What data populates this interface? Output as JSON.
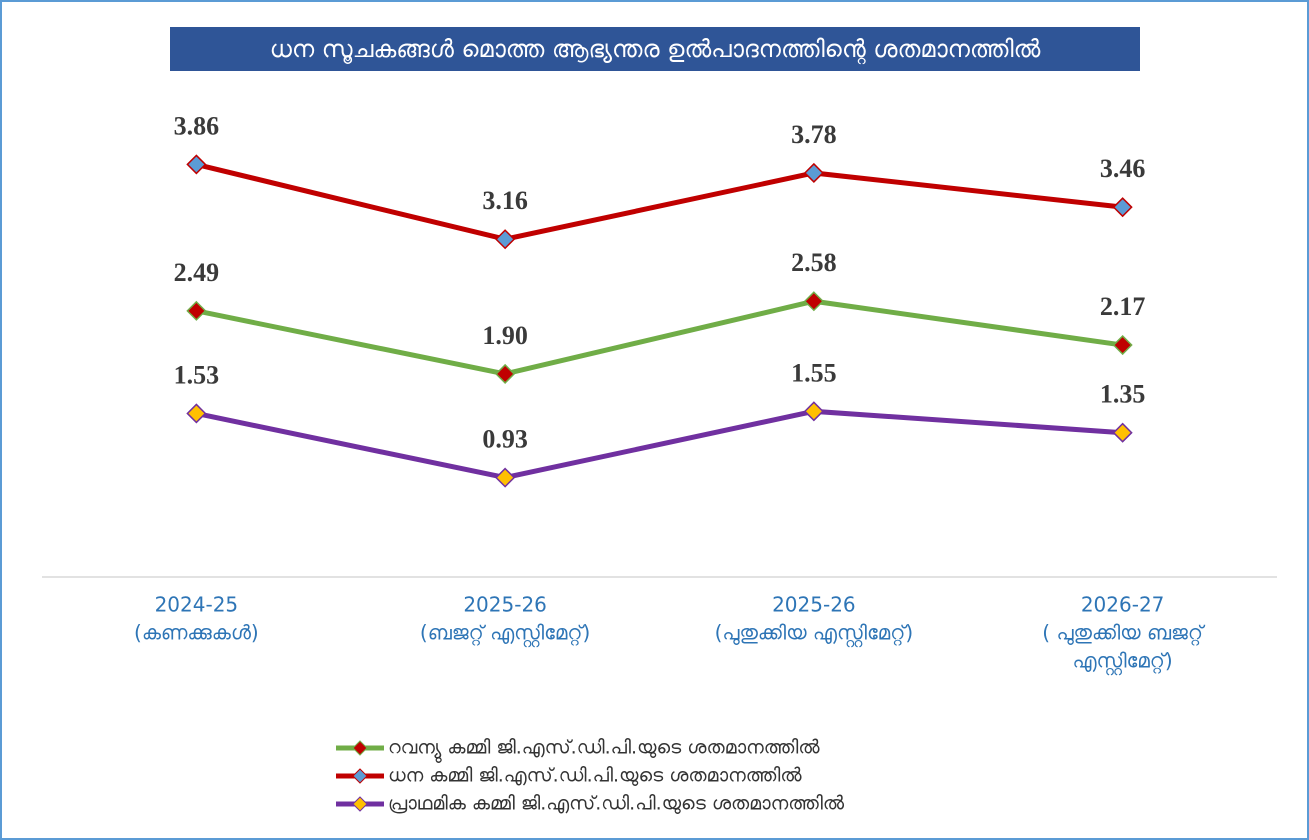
{
  "chart_data": {
    "type": "line",
    "title": "ധന സൂചകങ്ങൾ മൊത്ത ആഭ്യന്തര ഉൽപാദനത്തിന്റെ ശതമാനത്തിൽ",
    "categories": [
      [
        "2024-25",
        "(കണക്കുകൾ)"
      ],
      [
        "2025-26",
        "(ബജറ്റ് എസ്റ്റിമേറ്റ്)"
      ],
      [
        "2025-26",
        "(പുതുക്കിയ എസ്റ്റിമേറ്റ്)"
      ],
      [
        "2026-27",
        "( പുതുക്കിയ ബജറ്റ്",
        "എസ്റ്റിമേറ്റ്)"
      ]
    ],
    "series": [
      {
        "name": "റവന്യു  കമ്മി ജി.എസ്.ഡി.പി.യുടെ  ശതമാനത്തിൽ",
        "color": "#70ad47",
        "marker_color": "#c00000",
        "values": [
          2.49,
          1.9,
          2.58,
          2.17
        ],
        "value_labels": [
          "2.49",
          "1.90",
          "2.58",
          "2.17"
        ]
      },
      {
        "name": "ധന കമ്മി ജി.എസ്.ഡി.പി.യുടെ  ശതമാനത്തിൽ",
        "color": "#c00000",
        "marker_color": "#5b9bd5",
        "values": [
          3.86,
          3.16,
          3.78,
          3.46
        ],
        "value_labels": [
          "3.86",
          "3.16",
          "3.78",
          "3.46"
        ]
      },
      {
        "name": "പ്രാഥമിക കമ്മി ജി.എസ്.ഡി.പി.യുടെ  ശതമാനത്തിൽ",
        "color": "#7030a0",
        "marker_color": "#ffc000",
        "values": [
          1.53,
          0.93,
          1.55,
          1.35
        ],
        "value_labels": [
          "1.53",
          "0.93",
          "1.55",
          "1.35"
        ]
      }
    ],
    "ylim": [
      0,
      4.5
    ],
    "grid": false,
    "legend": "bottom"
  }
}
